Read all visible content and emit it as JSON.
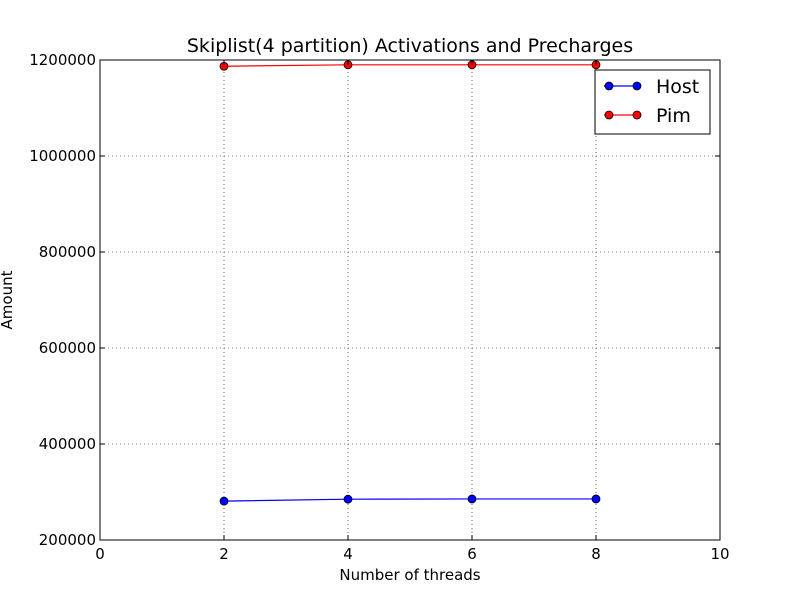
{
  "chart_data": {
    "type": "line",
    "title": "Skiplist(4 partition) Activations and Precharges",
    "xlabel": "Number of threads",
    "ylabel": "Amount",
    "xlim": [
      0,
      10
    ],
    "ylim": [
      200000,
      1200000
    ],
    "xticks": [
      0,
      2,
      4,
      6,
      8,
      10
    ],
    "yticks": [
      200000,
      400000,
      600000,
      800000,
      1000000,
      1200000
    ],
    "grid": true,
    "legend_position": "top-right",
    "x": [
      2,
      4,
      6,
      8
    ],
    "series": [
      {
        "name": "Host",
        "color": "#0000ff",
        "marker": "circle",
        "values": [
          281000,
          285000,
          285500,
          285500
        ]
      },
      {
        "name": "Pim",
        "color": "#ff0000",
        "marker": "circle",
        "values": [
          1187000,
          1190000,
          1190000,
          1190000
        ]
      }
    ]
  }
}
